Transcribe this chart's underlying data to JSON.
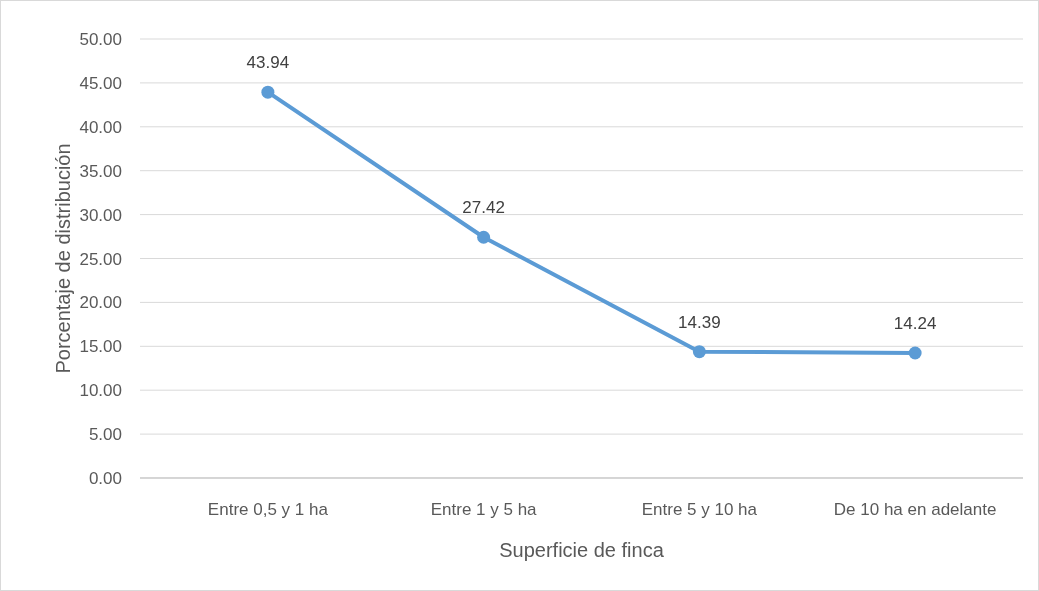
{
  "chart_data": {
    "type": "line",
    "xlabel": "Superficie de finca",
    "ylabel": "Porcentaje de distribución",
    "categories": [
      "Entre 0,5 y 1 ha",
      "Entre 1 y 5 ha",
      "Entre 5 y 10 ha",
      "De 10 ha en adelante"
    ],
    "series": [
      {
        "color": "#5b9bd5",
        "values": [
          43.94,
          27.42,
          14.39,
          14.24
        ]
      }
    ],
    "ylim": [
      0,
      50
    ],
    "yticks": [
      {
        "value": 0,
        "label": "0.00"
      },
      {
        "value": 5,
        "label": "5.00"
      },
      {
        "value": 10,
        "label": "10.00"
      },
      {
        "value": 15,
        "label": "15.00"
      },
      {
        "value": 20,
        "label": "20.00"
      },
      {
        "value": 25,
        "label": "25.00"
      },
      {
        "value": 30,
        "label": "30.00"
      },
      {
        "value": 35,
        "label": "35.00"
      },
      {
        "value": 40,
        "label": "40.00"
      },
      {
        "value": 45,
        "label": "45.00"
      },
      {
        "value": 50,
        "label": "50.00"
      }
    ],
    "grid": "y",
    "marker": "circle",
    "line_style": "solid",
    "data_labels": true
  }
}
